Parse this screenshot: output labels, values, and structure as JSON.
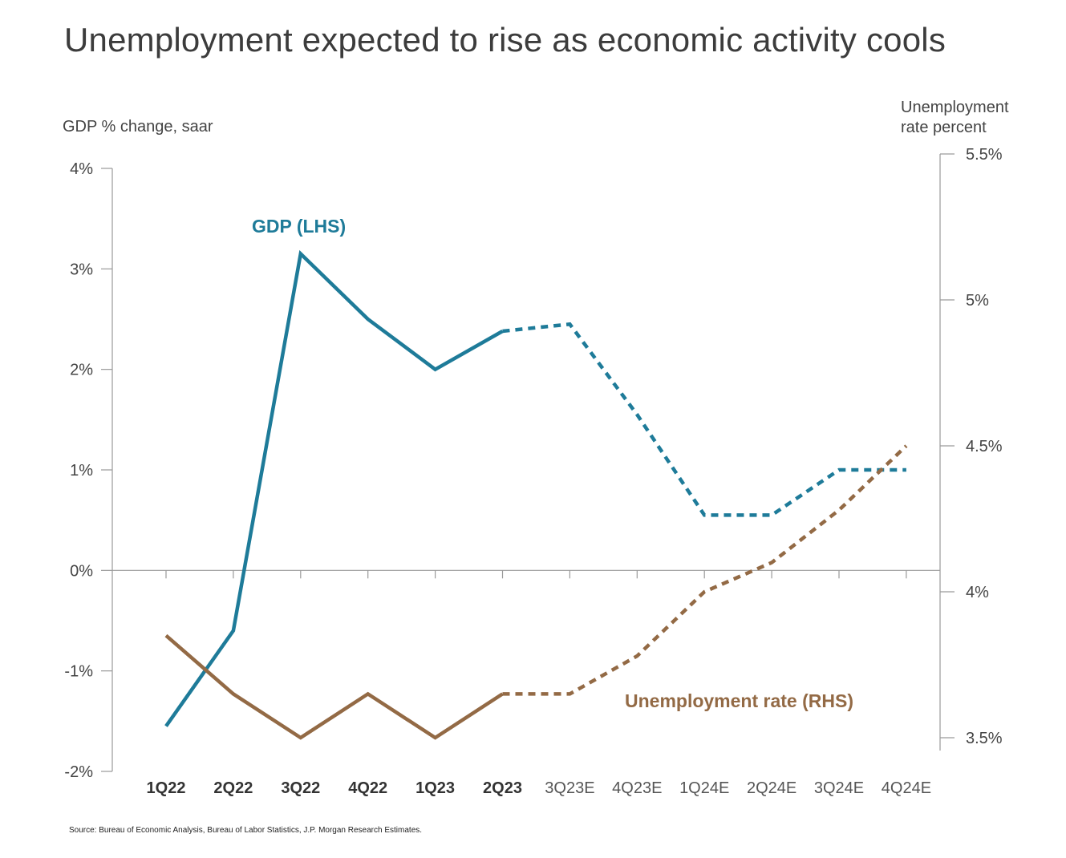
{
  "title": "Unemployment expected to rise as economic activity cools",
  "source": "Source: Bureau of Economic Analysis, Bureau of Labor Statistics, J.P. Morgan Research Estimates.",
  "colors": {
    "gdp": "#1e7b99",
    "unemployment": "#936a45",
    "axis": "#9a9a9a",
    "text": "#444444"
  },
  "chart_data": {
    "type": "line",
    "categories": [
      "1Q22",
      "2Q22",
      "3Q22",
      "4Q22",
      "1Q23",
      "2Q23",
      "3Q23E",
      "4Q23E",
      "1Q24E",
      "2Q24E",
      "3Q24E",
      "4Q24E"
    ],
    "bold_categories": [
      "1Q22",
      "2Q22",
      "3Q22",
      "4Q22",
      "1Q23",
      "2Q23"
    ],
    "left_axis": {
      "label": "GDP % change, saar",
      "ylim": [
        -2,
        4
      ],
      "ticks": [
        4,
        3,
        2,
        1,
        0,
        -1,
        -2
      ],
      "tick_labels": [
        "4%",
        "3%",
        "2%",
        "1%",
        "0%",
        "-1%",
        "-2%"
      ]
    },
    "right_axis": {
      "label_lines": [
        "Unemployment",
        "rate percent"
      ],
      "ylim": [
        3.5,
        5.5
      ],
      "ticks": [
        5.5,
        5,
        4.5,
        4,
        3.5
      ],
      "tick_labels": [
        "5.5%",
        "5%",
        "4.5%",
        "4%",
        "3.5%"
      ]
    },
    "series": [
      {
        "name": "GDP (LHS)",
        "axis": "left",
        "color_key": "gdp",
        "actual_until": 5,
        "values": [
          -1.55,
          -0.6,
          3.15,
          2.5,
          2.0,
          2.38,
          2.45,
          1.55,
          0.55,
          0.55,
          1.0,
          1.0
        ]
      },
      {
        "name": "Unemployment rate (RHS)",
        "axis": "right",
        "color_key": "unemployment",
        "actual_until": 5,
        "values": [
          3.85,
          3.65,
          3.5,
          3.65,
          3.5,
          3.65,
          3.65,
          3.78,
          4.0,
          4.1,
          4.28,
          4.5
        ]
      }
    ]
  }
}
